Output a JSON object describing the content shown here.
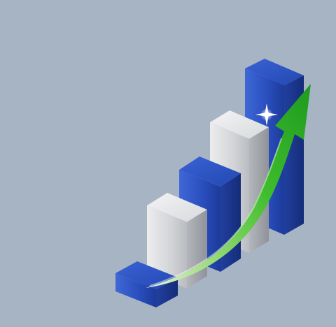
{
  "illustration": {
    "subject": "growth-bar-chart-icon",
    "background_color": "#a7b4c4",
    "bar_colors": [
      "#2a4fbf",
      "#d4d6d9",
      "#2a4fbf",
      "#d4d6d9",
      "#2a4fbf"
    ],
    "arrow_color": "#3ebd2c",
    "relative_heights": [
      0.12,
      0.46,
      0.62,
      0.85,
      1.0
    ]
  }
}
